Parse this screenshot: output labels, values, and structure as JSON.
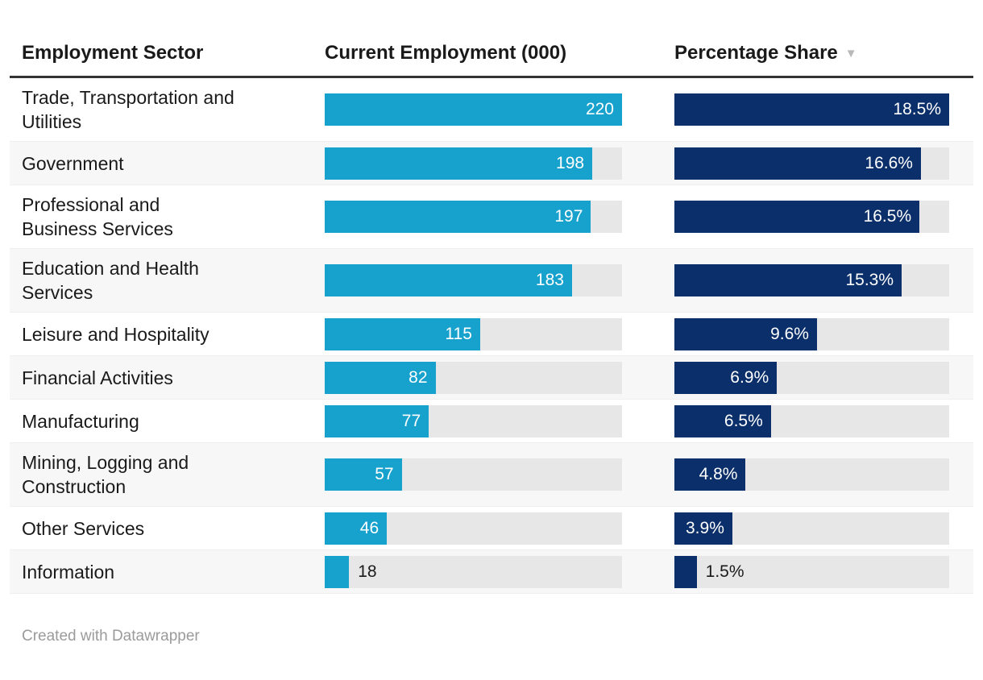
{
  "table": {
    "columns": [
      {
        "id": "sector",
        "label": "Employment Sector"
      },
      {
        "id": "employment",
        "label": "Current Employment (000)"
      },
      {
        "id": "share",
        "label": "Percentage Share",
        "sort_icon": "▼",
        "sorted": "descending"
      }
    ],
    "rows": [
      {
        "sector": "Trade, Transportation and Utilities",
        "employment": 220,
        "share": 18.5,
        "share_label": "18.5%"
      },
      {
        "sector": "Government",
        "employment": 198,
        "share": 16.6,
        "share_label": "16.6%"
      },
      {
        "sector": "Professional and Business Services",
        "employment": 197,
        "share": 16.5,
        "share_label": "16.5%"
      },
      {
        "sector": "Education and Health Services",
        "employment": 183,
        "share": 15.3,
        "share_label": "15.3%"
      },
      {
        "sector": "Leisure and Hospitality",
        "employment": 115,
        "share": 9.6,
        "share_label": "9.6%"
      },
      {
        "sector": "Financial Activities",
        "employment": 82,
        "share": 6.9,
        "share_label": "6.9%"
      },
      {
        "sector": "Manufacturing",
        "employment": 77,
        "share": 6.5,
        "share_label": "6.5%"
      },
      {
        "sector": "Mining, Logging and Construction",
        "employment": 57,
        "share": 4.8,
        "share_label": "4.8%"
      },
      {
        "sector": "Other Services",
        "employment": 46,
        "share": 3.9,
        "share_label": "3.9%"
      },
      {
        "sector": "Information",
        "employment": 18,
        "share": 1.5,
        "share_label": "1.5%"
      }
    ]
  },
  "footer": {
    "credit": "Created with Datawrapper"
  },
  "colors": {
    "employment_bar": "#17a1cd",
    "share_bar": "#0a2f6a",
    "bar_track": "#e7e7e7",
    "row_stripe": "#f7f7f7",
    "header_rule": "#333333",
    "text": "#1a1a1a",
    "bar_label_inside": "#ffffff",
    "sort_arrow": "#b9b9b9",
    "footer_text": "#9b9b9b"
  },
  "chart_data": {
    "type": "bar",
    "title": "",
    "categories": [
      "Trade, Transportation and Utilities",
      "Government",
      "Professional and Business Services",
      "Education and Health Services",
      "Leisure and Hospitality",
      "Financial Activities",
      "Manufacturing",
      "Mining, Logging and Construction",
      "Other Services",
      "Information"
    ],
    "series": [
      {
        "name": "Current Employment (000)",
        "values": [
          220,
          198,
          197,
          183,
          115,
          82,
          77,
          57,
          46,
          18
        ],
        "xlim": [
          0,
          220
        ],
        "color": "#17a1cd"
      },
      {
        "name": "Percentage Share",
        "values": [
          18.5,
          16.6,
          16.5,
          15.3,
          9.6,
          6.9,
          6.5,
          4.8,
          3.9,
          1.5
        ],
        "xlim": [
          0,
          18.5
        ],
        "color": "#0a2f6a",
        "unit": "%"
      }
    ],
    "orientation": "horizontal",
    "grid": false,
    "legend": "none",
    "sort": "descending by Percentage Share",
    "credit": "Created with Datawrapper"
  }
}
